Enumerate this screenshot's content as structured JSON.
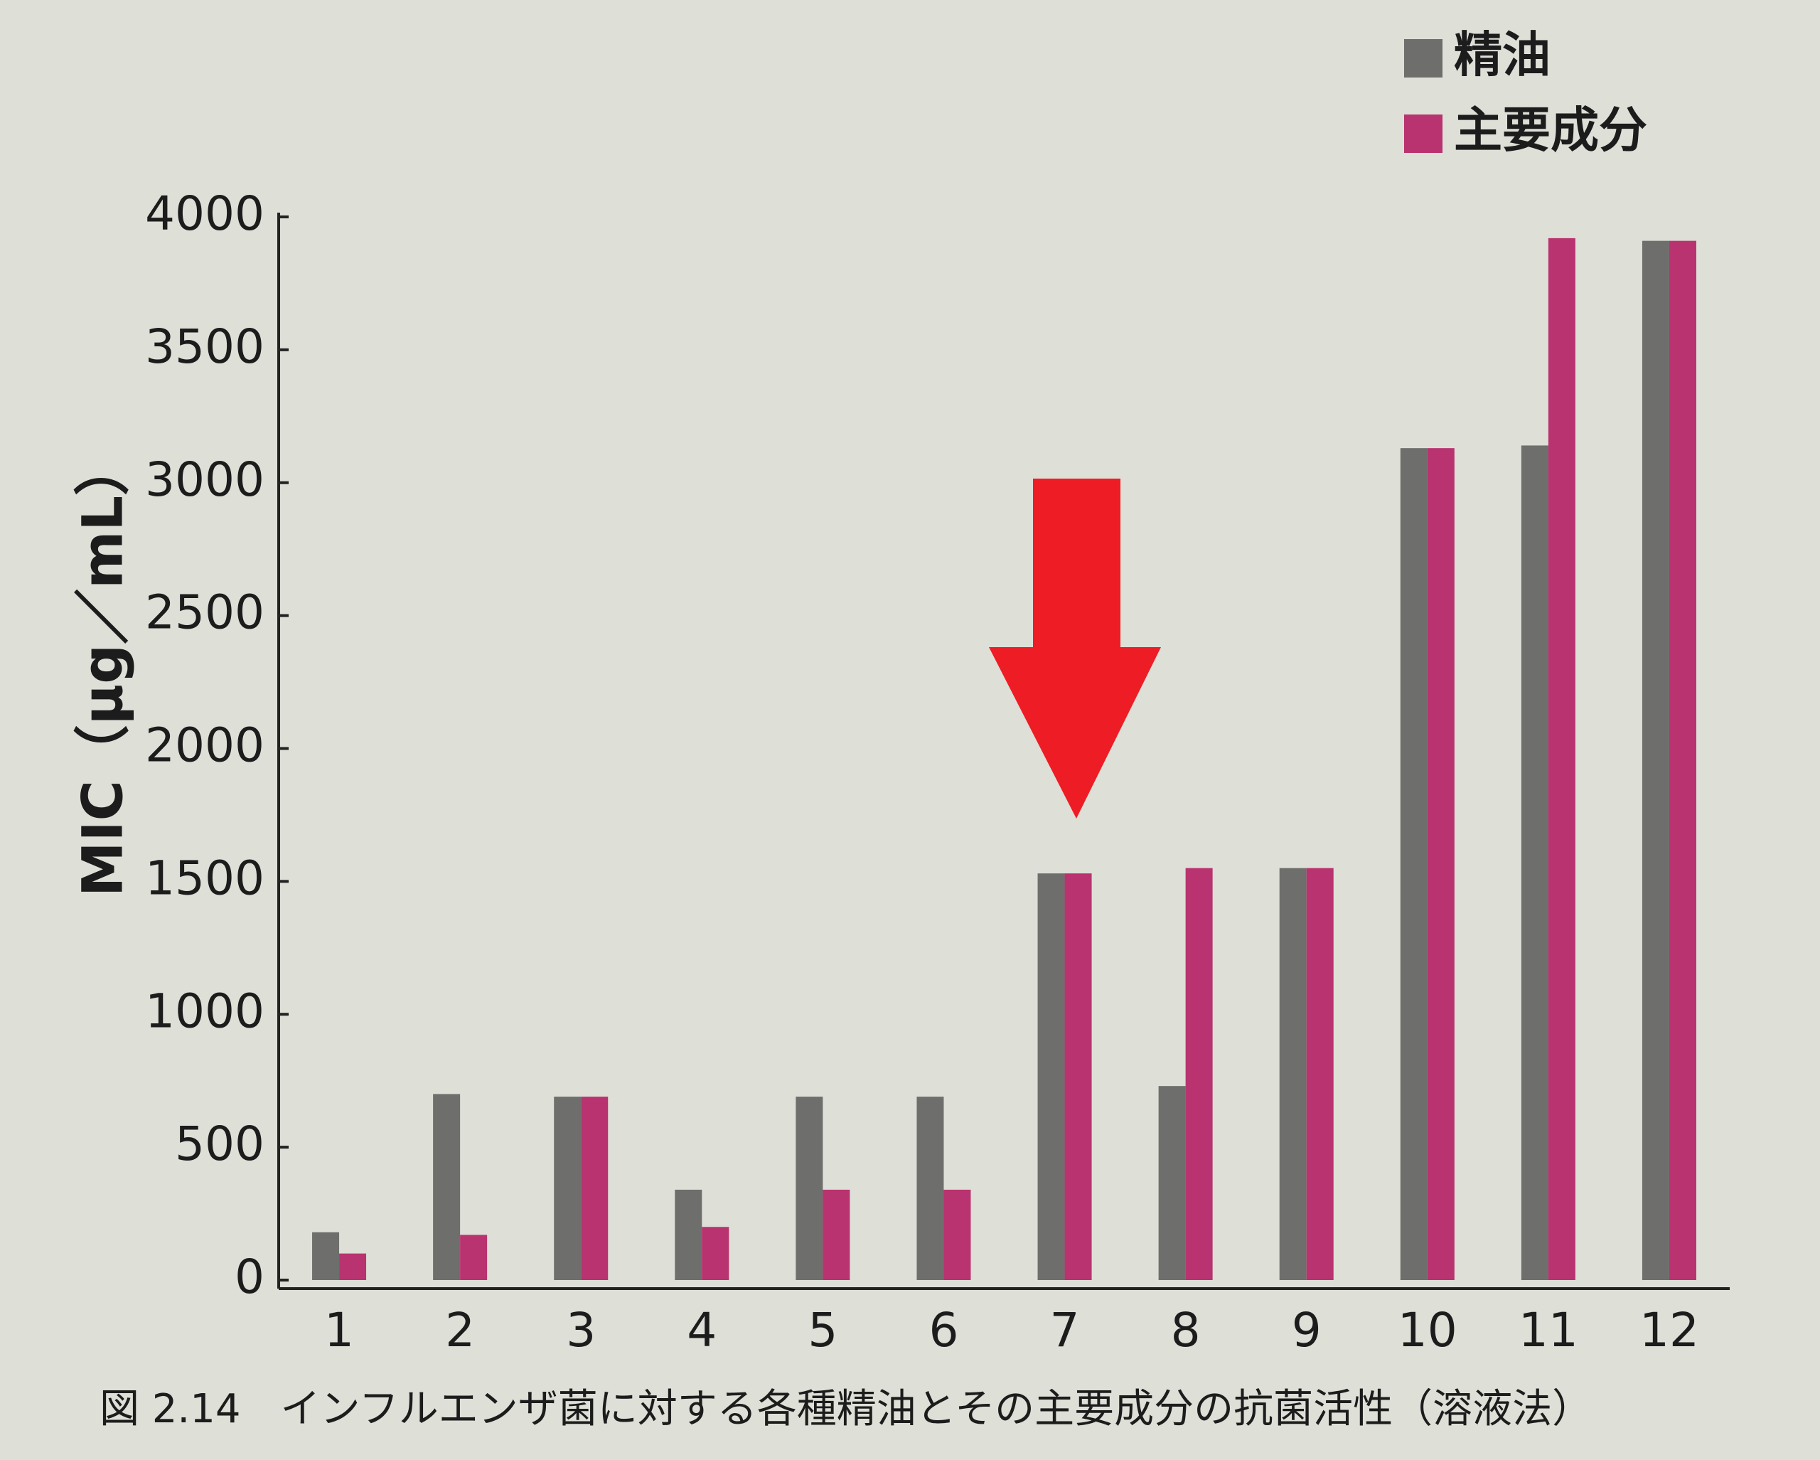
{
  "chart_data": {
    "type": "bar",
    "ylabel": "MIC（μg／mL）",
    "caption": "図 2.14　インフルエンザ菌に対する各種精油とその主要成分の抗菌活性（溶液法）",
    "categories": [
      "1",
      "2",
      "3",
      "4",
      "5",
      "6",
      "7",
      "8",
      "9",
      "10",
      "11",
      "12"
    ],
    "series": [
      {
        "name": "精油",
        "color": "#6e6e6c",
        "values": [
          180,
          700,
          690,
          340,
          690,
          690,
          1530,
          730,
          1550,
          3130,
          3140,
          3910
        ]
      },
      {
        "name": "主要成分",
        "color": "#b8336f",
        "values": [
          100,
          170,
          690,
          200,
          340,
          340,
          1530,
          1550,
          1550,
          3130,
          3920,
          3910
        ]
      }
    ],
    "ylim": [
      0,
      4000
    ],
    "yticks": [
      0,
      500,
      1000,
      1500,
      2000,
      2500,
      3000,
      3500,
      4000
    ],
    "legend": "top-right",
    "grid": false
  }
}
